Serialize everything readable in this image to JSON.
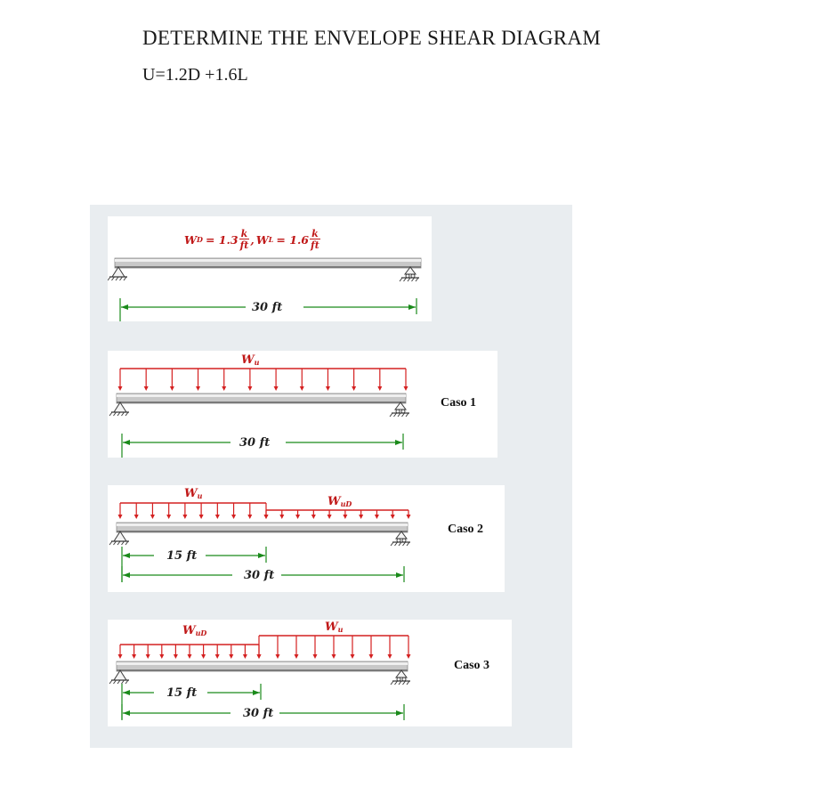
{
  "header": {
    "title": "DETERMINE THE ENVELOPE SHEAR DIAGRAM",
    "subtitle": "U=1.2D +1.6L"
  },
  "diagram1": {
    "wd_label": "W",
    "wd_sub": "D",
    "wd_value": "= 1.3",
    "wl_label": "W",
    "wl_sub": "L",
    "wl_value": "= 1.6",
    "unit_num": "k",
    "unit_den": "ft",
    "comma": ",",
    "span_label": "30 ft"
  },
  "case1": {
    "load_label": "W",
    "load_sub": "u",
    "span_label": "30 ft",
    "case_label": "Caso 1"
  },
  "case2": {
    "left_load_label": "W",
    "left_load_sub": "u",
    "right_load_label": "W",
    "right_load_sub": "uD",
    "partial_label": "15 ft",
    "span_label": "30 ft",
    "case_label": "Caso 2"
  },
  "case3": {
    "left_load_label": "W",
    "left_load_sub": "uD",
    "right_load_label": "W",
    "right_load_sub": "u",
    "partial_label": "15 ft",
    "span_label": "30 ft",
    "case_label": "Caso 3"
  },
  "colors": {
    "load": "#d42020",
    "dimension": "#1a8a1a",
    "beam": "#c8c8c8",
    "panel": "#e9edf0"
  }
}
